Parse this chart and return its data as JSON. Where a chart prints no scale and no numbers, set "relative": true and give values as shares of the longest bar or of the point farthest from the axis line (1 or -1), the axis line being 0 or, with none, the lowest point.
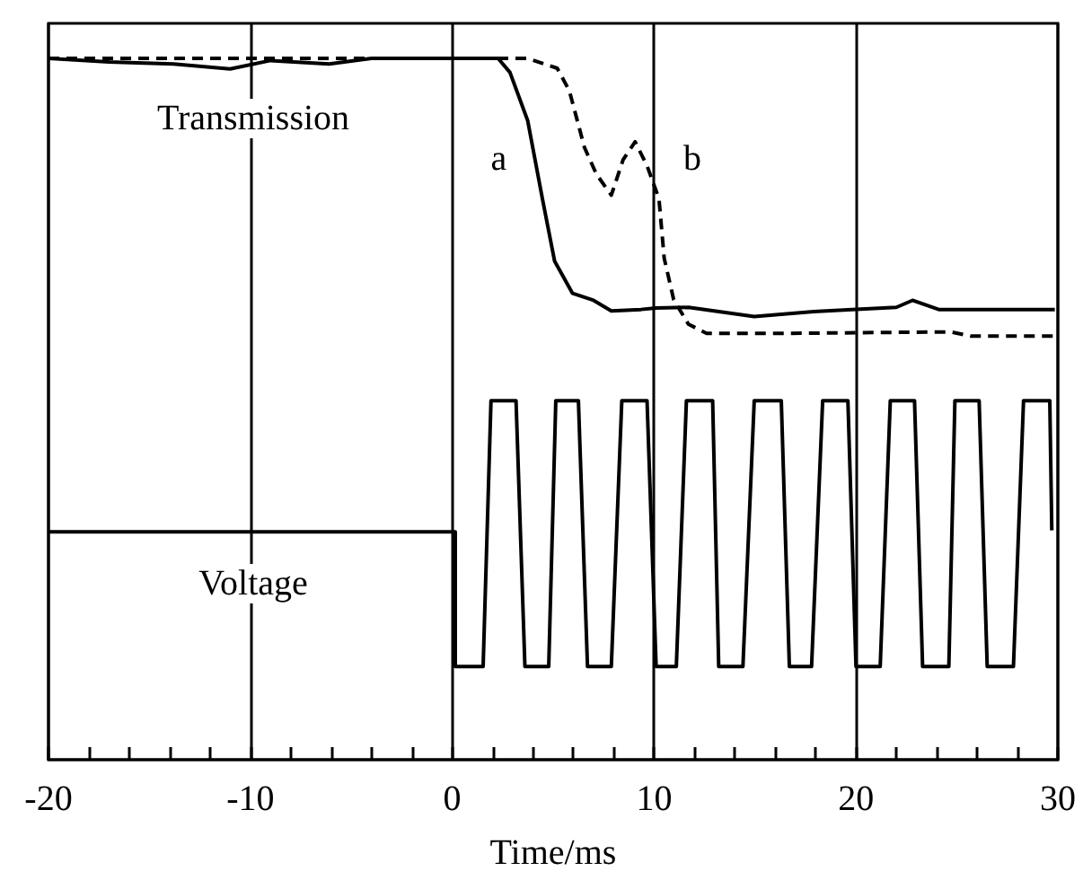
{
  "chart_data": {
    "type": "line",
    "relative": true,
    "xlabel": "Time/ms",
    "xlim": [
      -20,
      30
    ],
    "xticks": [
      -20,
      {
        "value": -18,
        "label": null
      },
      {
        "value": -16,
        "label": null
      },
      {
        "value": -14,
        "label": null
      },
      {
        "value": -12,
        "label": null
      },
      -10,
      {
        "value": -8,
        "label": null
      },
      {
        "value": -6,
        "label": null
      },
      {
        "value": -4,
        "label": null
      },
      {
        "value": -2,
        "label": null
      },
      0,
      {
        "value": 2,
        "label": null
      },
      {
        "value": 4,
        "label": null
      },
      {
        "value": 6,
        "label": null
      },
      {
        "value": 8,
        "label": null
      },
      10,
      {
        "value": 12,
        "label": null
      },
      {
        "value": 14,
        "label": null
      },
      {
        "value": 16,
        "label": null
      },
      {
        "value": 18,
        "label": null
      },
      20,
      {
        "value": 22,
        "label": null
      },
      {
        "value": 24,
        "label": null
      },
      {
        "value": 26,
        "label": null
      },
      {
        "value": 28,
        "label": null
      },
      30
    ],
    "grid": "x",
    "tick_labels": "x",
    "series": [
      {
        "color": "#000000",
        "line_style": "solid",
        "x": [
          -20,
          -17,
          -13.8,
          -11,
          -9,
          -6.1,
          -4,
          0,
          2.27,
          2.86,
          3.74,
          4.48,
          5.07,
          5.96,
          7.0,
          7.88,
          9.35,
          10.1,
          11.7,
          14.96,
          17.9,
          19.8,
          22.0,
          22.8,
          24.1,
          29.85
        ],
        "values": [
          1.0,
          0.995,
          0.992,
          0.985,
          0.997,
          0.992,
          1.0,
          1.0,
          1.0,
          0.98,
          0.911,
          0.798,
          0.711,
          0.665,
          0.655,
          0.64,
          0.642,
          0.644,
          0.645,
          0.632,
          0.639,
          0.642,
          0.645,
          0.655,
          0.642,
          0.642
        ]
      },
      {
        "color": "#000000",
        "line_style": "dashed",
        "x": [
          -20,
          0,
          3.74,
          5.2,
          5.8,
          6.55,
          7.14,
          7.88,
          8.47,
          9.06,
          9.65,
          10.24,
          10.5,
          10.97,
          11.7,
          12.6,
          16.7,
          24.7,
          25.7,
          29.85
        ],
        "values": [
          1.0,
          1.0,
          1.0,
          0.986,
          0.954,
          0.873,
          0.835,
          0.805,
          0.856,
          0.881,
          0.847,
          0.8,
          0.715,
          0.656,
          0.621,
          0.608,
          0.608,
          0.61,
          0.604,
          0.604
        ]
      },
      {
        "color": "#000000",
        "line_style": "solid",
        "x": [
          -20,
          0.15,
          0.15,
          1.53,
          1.92,
          3.16,
          3.6,
          4.78,
          5.13,
          6.25,
          6.7,
          7.88,
          8.4,
          9.65,
          10.1,
          11.1,
          11.6,
          12.9,
          13.2,
          14.4,
          14.96,
          16.3,
          16.7,
          17.8,
          18.35,
          19.6,
          20.0,
          21.2,
          21.7,
          22.9,
          23.3,
          24.6,
          24.9,
          26.1,
          26.5,
          27.8,
          28.3,
          29.6,
          29.7
        ],
        "values": [
          0.325,
          0.325,
          0.133,
          0.133,
          0.512,
          0.512,
          0.133,
          0.133,
          0.512,
          0.512,
          0.133,
          0.133,
          0.512,
          0.512,
          0.133,
          0.133,
          0.512,
          0.512,
          0.133,
          0.133,
          0.512,
          0.512,
          0.133,
          0.133,
          0.512,
          0.512,
          0.133,
          0.133,
          0.512,
          0.512,
          0.133,
          0.133,
          0.512,
          0.512,
          0.133,
          0.133,
          0.512,
          0.512,
          0.327
        ]
      }
    ],
    "annotations": [
      "Transmission",
      "Voltage",
      {
        "text": "a",
        "x": 2.3,
        "y": 0.857
      },
      {
        "text": "b",
        "x": 11.9,
        "y": 0.857
      }
    ]
  }
}
